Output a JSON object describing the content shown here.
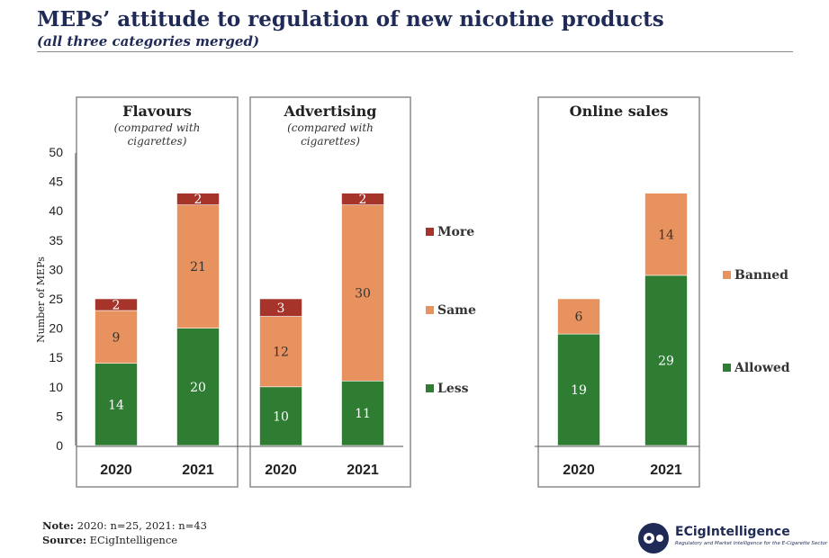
{
  "title": "MEPs’ attitude to regulation of new nicotine products",
  "subtitle": "(all three categories merged)",
  "note_label": "Note:",
  "note_text": "2020: n=25, 2021: n=43",
  "source_label": "Source:",
  "source_text": "ECigIntelligence",
  "logo": {
    "name": "ECigIntelligence",
    "tagline": "Regulatory and Market Intelligence for the E-Cigarette Sector",
    "icon": "ecigintelligence-logo-icon"
  },
  "colors": {
    "less": "#2e7d32",
    "same": "#e8935f",
    "more": "#a6342a",
    "allowed": "#2e7d32",
    "banned": "#e8935f",
    "title": "#1f2a56"
  },
  "chart_data": {
    "type": "bar",
    "stacked": true,
    "ylabel": "Number of MEPs",
    "ylim": [
      0,
      50
    ],
    "yticks": [
      0,
      5,
      10,
      15,
      20,
      25,
      30,
      35,
      40,
      45,
      50
    ],
    "panels": [
      {
        "title": "Flavours",
        "subtitle_lines": [
          "(compared with",
          "cigarettes)"
        ],
        "categories": [
          "2020",
          "2021"
        ],
        "series": [
          {
            "name": "Less",
            "color_key": "less",
            "values": [
              14,
              20
            ]
          },
          {
            "name": "Same",
            "color_key": "same",
            "values": [
              9,
              21
            ]
          },
          {
            "name": "More",
            "color_key": "more",
            "values": [
              2,
              2
            ]
          }
        ]
      },
      {
        "title": "Advertising",
        "subtitle_lines": [
          "(compared with",
          "cigarettes)"
        ],
        "categories": [
          "2020",
          "2021"
        ],
        "series": [
          {
            "name": "Less",
            "color_key": "less",
            "values": [
              10,
              11
            ]
          },
          {
            "name": "Same",
            "color_key": "same",
            "values": [
              12,
              30
            ]
          },
          {
            "name": "More",
            "color_key": "more",
            "values": [
              3,
              2
            ]
          }
        ]
      },
      {
        "title": "Online sales",
        "subtitle_lines": [],
        "categories": [
          "2020",
          "2021"
        ],
        "series": [
          {
            "name": "Allowed",
            "color_key": "allowed",
            "values": [
              19,
              29
            ]
          },
          {
            "name": "Banned",
            "color_key": "banned",
            "values": [
              6,
              14
            ]
          }
        ]
      }
    ],
    "legends": [
      {
        "for_panels": [
          "Flavours",
          "Advertising"
        ],
        "entries": [
          {
            "label": "More",
            "color_key": "more"
          },
          {
            "label": "Same",
            "color_key": "same"
          },
          {
            "label": "Less",
            "color_key": "less"
          }
        ]
      },
      {
        "for_panels": [
          "Online sales"
        ],
        "entries": [
          {
            "label": "Banned",
            "color_key": "banned"
          },
          {
            "label": "Allowed",
            "color_key": "allowed"
          }
        ]
      }
    ],
    "grid": false
  }
}
